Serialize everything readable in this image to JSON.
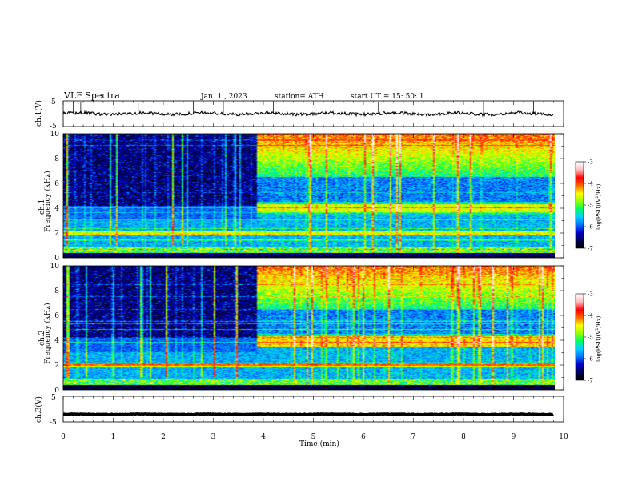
{
  "header": {
    "title": "VLF  Spectra",
    "date": "Jan.  1  , 2023",
    "station": "station= ATH",
    "start": "start  UT  =    15: 50: 1"
  },
  "colors": {
    "cmap": [
      "#000000",
      "#000055",
      "#0000cc",
      "#0077ff",
      "#00d0ff",
      "#00ff66",
      "#99ff00",
      "#ffff00",
      "#ff6600",
      "#ff0000",
      "#ffbbbb",
      "#ffffff"
    ],
    "background": "#ffffff",
    "trace": "#000000"
  },
  "chart_data": [
    {
      "type": "line",
      "name": "ch1-waveform",
      "ylabel": "ch.1(V)",
      "yticks": [
        "5",
        "-5"
      ],
      "ylim": [
        -5,
        5
      ],
      "xlim": [
        0,
        10
      ],
      "description_values": {
        "mean_v": 0,
        "approx_amplitude_v": 1
      },
      "spikes_up_at_min": [
        0.2,
        0.35,
        1.5,
        2.6,
        3.2,
        4.2,
        6.3,
        8.4,
        9.4
      ]
    },
    {
      "type": "heatmap",
      "name": "ch1-spectrogram",
      "ylabel": "ch.1\nFrequency (kHz)",
      "yticks": [
        "0",
        "2",
        "4",
        "6",
        "8",
        "10"
      ],
      "ylim": [
        0,
        10
      ],
      "xlim": [
        0,
        9.8
      ],
      "colorbar": {
        "label": "log(PSD)(V²/Hz)",
        "ticks": [
          "-3",
          "-4",
          "-5",
          "-6",
          "-7"
        ],
        "range": [
          -7,
          -3
        ]
      },
      "regime_change_min": 3.85,
      "before": {
        "background_level": -6.8,
        "upper_band_khz": [
          4.2,
          10
        ]
      },
      "after": {
        "background_level": -5.0,
        "band_khz": [
          3.7,
          4.3
        ],
        "band_level": -4.6
      }
    },
    {
      "type": "heatmap",
      "name": "ch2-spectrogram",
      "ylabel": "ch.2\nFrequency (kHz)",
      "yticks": [
        "0",
        "2",
        "4",
        "6",
        "8",
        "10"
      ],
      "ylim": [
        0,
        10
      ],
      "xlim": [
        0,
        9.8
      ],
      "colorbar": {
        "label": "log(PSD)(V²/Hz)",
        "ticks": [
          "-3",
          "-4",
          "-5",
          "-6",
          "-7"
        ],
        "range": [
          -7,
          -3
        ]
      },
      "regime_change_min": 3.85,
      "before": {
        "background_level": -6.6,
        "upper_band_khz": [
          4.2,
          10
        ]
      },
      "after": {
        "background_level": -4.9,
        "band_khz": [
          3.5,
          4.3
        ],
        "band_level": -4.4
      }
    },
    {
      "type": "line",
      "name": "ch3-waveform",
      "ylabel": "ch.3(V)",
      "yticks": [
        "5",
        "-5"
      ],
      "ylim": [
        -5,
        5
      ],
      "xlim": [
        0,
        10
      ],
      "description_values": {
        "mean_v": -2,
        "approx_amplitude_v": 0.2
      }
    }
  ],
  "xaxis": {
    "label": "Time  (min)",
    "ticks": [
      "0",
      "1",
      "2",
      "3",
      "4",
      "5",
      "6",
      "7",
      "8",
      "9",
      "10"
    ],
    "range": [
      0,
      10
    ]
  }
}
